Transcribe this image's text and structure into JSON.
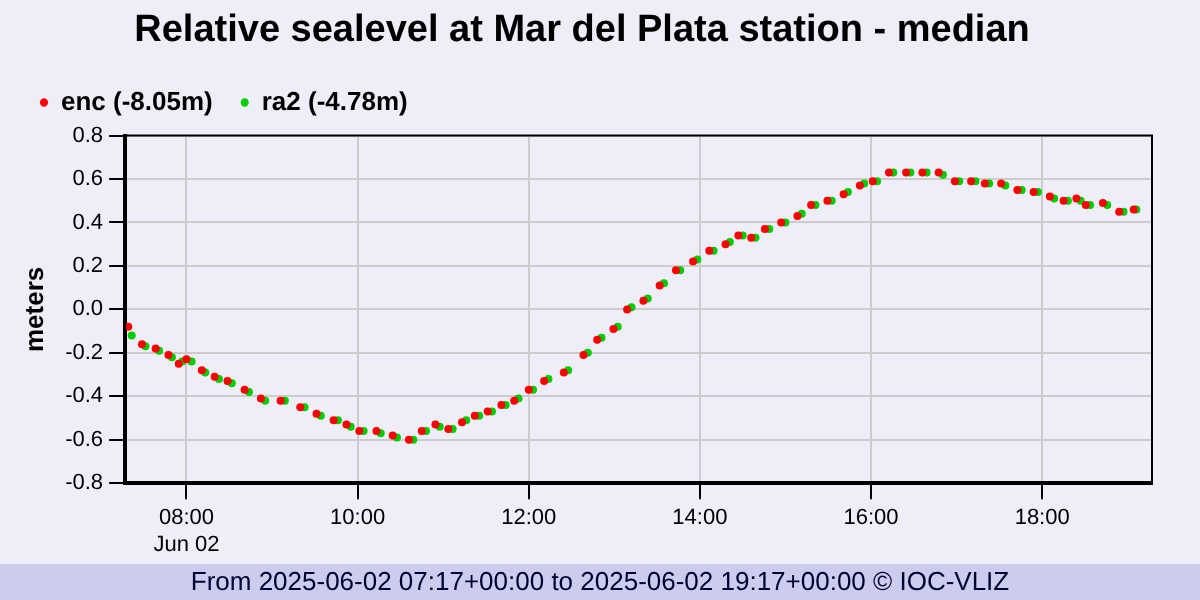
{
  "chart_data": {
    "type": "scatter",
    "title": "Relative sealevel at Mar del Plata station - median",
    "ylabel": "meters",
    "xlim": [
      7.2833,
      19.2833
    ],
    "xticks": [
      {
        "value": 8,
        "label": "08:00\nJun 02"
      },
      {
        "value": 10,
        "label": "10:00"
      },
      {
        "value": 12,
        "label": "12:00"
      },
      {
        "value": 14,
        "label": "14:00"
      },
      {
        "value": 16,
        "label": "16:00"
      },
      {
        "value": 18,
        "label": "18:00"
      }
    ],
    "ylim": [
      -0.8,
      0.8
    ],
    "yticks": [
      -0.8,
      -0.6,
      -0.4,
      -0.2,
      {
        "value": 0,
        "label": "0.0"
      },
      0.2,
      0.4,
      0.6,
      0.8
    ],
    "grid": true,
    "legend": "top left",
    "marker": "circle",
    "annotations": [
      "From 2025-06-02 07:17+00:00 to 2025-06-02 19:17+00:00 © IOC-VLIZ"
    ],
    "series": [
      {
        "name": "enc (-8.05m)",
        "color": "#ff0000",
        "x": [
          7.32,
          7.48,
          7.64,
          7.79,
          7.91,
          8.0,
          8.18,
          8.33,
          8.48,
          8.68,
          8.87,
          9.1,
          9.33,
          9.52,
          9.72,
          9.87,
          10.02,
          10.22,
          10.41,
          10.6,
          10.75,
          10.91,
          11.06,
          11.22,
          11.37,
          11.52,
          11.68,
          11.83,
          12.0,
          12.18,
          12.41,
          12.64,
          12.8,
          12.99,
          13.15,
          13.34,
          13.53,
          13.72,
          13.92,
          14.11,
          14.3,
          14.45,
          14.6,
          14.76,
          14.95,
          15.14,
          15.3,
          15.49,
          15.68,
          15.87,
          16.02,
          16.21,
          16.41,
          16.6,
          16.79,
          16.98,
          17.17,
          17.33,
          17.52,
          17.71,
          17.9,
          18.09,
          18.25,
          18.4,
          18.51,
          18.71,
          18.9,
          19.07
        ],
        "values": [
          -0.08,
          -0.16,
          -0.18,
          -0.21,
          -0.25,
          -0.23,
          -0.28,
          -0.31,
          -0.33,
          -0.37,
          -0.41,
          -0.42,
          -0.45,
          -0.48,
          -0.51,
          -0.53,
          -0.56,
          -0.56,
          -0.58,
          -0.6,
          -0.56,
          -0.53,
          -0.55,
          -0.52,
          -0.49,
          -0.47,
          -0.44,
          -0.42,
          -0.37,
          -0.33,
          -0.29,
          -0.21,
          -0.14,
          -0.09,
          0.0,
          0.04,
          0.11,
          0.18,
          0.22,
          0.27,
          0.3,
          0.34,
          0.33,
          0.37,
          0.4,
          0.43,
          0.48,
          0.5,
          0.53,
          0.57,
          0.59,
          0.63,
          0.63,
          0.63,
          0.63,
          0.59,
          0.59,
          0.58,
          0.58,
          0.55,
          0.54,
          0.52,
          0.5,
          0.51,
          0.48,
          0.49,
          0.45,
          0.46
        ]
      },
      {
        "name": "ra2 (-4.78m)",
        "color": "#00cc00",
        "x": [
          7.36,
          7.52,
          7.68,
          7.83,
          7.95,
          8.06,
          8.22,
          8.38,
          8.53,
          8.73,
          8.92,
          9.15,
          9.38,
          9.57,
          9.77,
          9.92,
          10.07,
          10.27,
          10.46,
          10.65,
          10.8,
          10.96,
          11.11,
          11.27,
          11.42,
          11.57,
          11.73,
          11.88,
          12.05,
          12.23,
          12.46,
          12.69,
          12.85,
          13.04,
          13.2,
          13.39,
          13.58,
          13.77,
          13.97,
          14.16,
          14.35,
          14.5,
          14.65,
          14.81,
          15.0,
          15.19,
          15.35,
          15.54,
          15.73,
          15.92,
          16.07,
          16.26,
          16.46,
          16.65,
          16.84,
          17.03,
          17.22,
          17.38,
          17.57,
          17.76,
          17.95,
          18.14,
          18.3,
          18.45,
          18.56,
          18.76,
          18.95,
          19.1
        ],
        "values": [
          -0.12,
          -0.17,
          -0.19,
          -0.22,
          -0.24,
          -0.24,
          -0.29,
          -0.32,
          -0.34,
          -0.38,
          -0.42,
          -0.42,
          -0.45,
          -0.49,
          -0.51,
          -0.54,
          -0.56,
          -0.57,
          -0.59,
          -0.6,
          -0.56,
          -0.54,
          -0.55,
          -0.51,
          -0.49,
          -0.47,
          -0.44,
          -0.41,
          -0.37,
          -0.32,
          -0.28,
          -0.2,
          -0.13,
          -0.08,
          0.01,
          0.05,
          0.12,
          0.18,
          0.23,
          0.27,
          0.31,
          0.34,
          0.33,
          0.37,
          0.4,
          0.44,
          0.48,
          0.5,
          0.54,
          0.58,
          0.59,
          0.63,
          0.63,
          0.63,
          0.62,
          0.59,
          0.59,
          0.58,
          0.57,
          0.55,
          0.54,
          0.51,
          0.5,
          0.5,
          0.48,
          0.48,
          0.45,
          0.46
        ]
      }
    ]
  }
}
